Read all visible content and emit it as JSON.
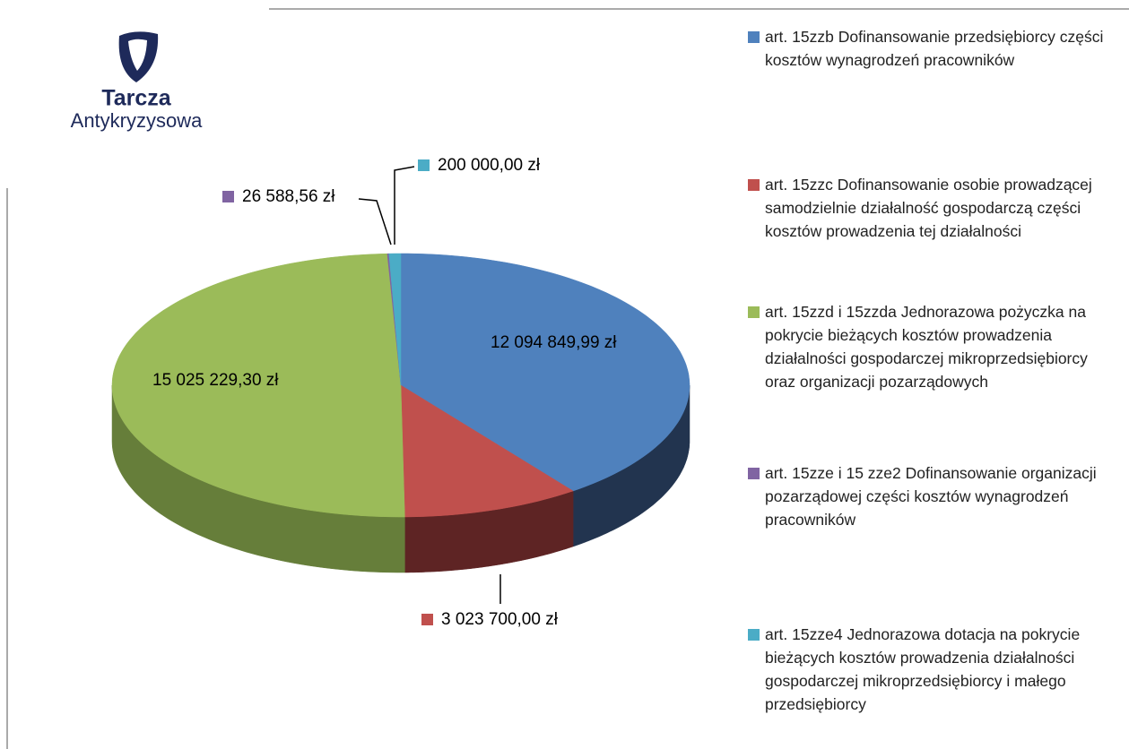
{
  "logo": {
    "title": "Tarcza",
    "subtitle": "Antykryzysowa"
  },
  "chart_data": {
    "type": "pie",
    "categories": [
      "art. 15zzb Dofinansowanie przedsiębiorcy części kosztów wynagrodzeń pracowników",
      "art. 15zzc Dofinansowanie osobie prowadzącej samodzielnie działalność gospodarczą części kosztów prowadzenia tej działalności",
      "art. 15zzd i 15zzda Jednorazowa pożyczka na pokrycie bieżących kosztów prowadzenia działalności gospodarczej mikroprzedsiębiorcy  oraz organizacji pozarządowych",
      "art. 15zze i 15 zze2 Dofinansowanie organizacji pozarządowej części kosztów wynagrodzeń pracowników",
      "art. 15zze4 Jednorazowa dotacja na pokrycie bieżących  kosztów prowadzenia działalności gospodarczej mikroprzedsiębiorcy i małego przedsiębiorcy"
    ],
    "values": [
      12094849.99,
      3023700.0,
      15025229.3,
      26588.56,
      200000.0
    ],
    "value_labels": [
      "12 094 849,99 zł",
      "3 023 700,00 zł",
      "15 025 229,30 zł",
      "26 588,56 zł",
      "200 000,00 zł"
    ],
    "colors": [
      "#4f81bd",
      "#c0504d",
      "#9bbb59",
      "#8064a2",
      "#4bacc6"
    ],
    "side_colors": [
      "#22344f",
      "#5e2424",
      "#667e3a",
      "#4a3a63",
      "#2f7184"
    ],
    "legend": "right"
  }
}
